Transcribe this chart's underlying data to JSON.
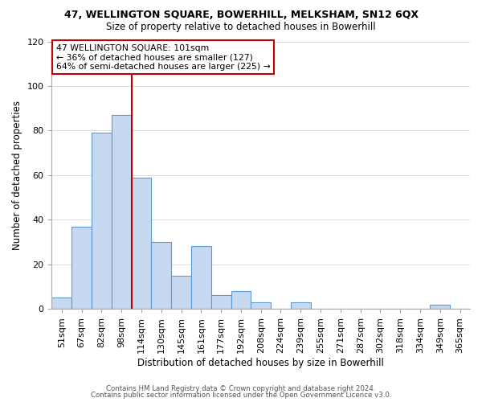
{
  "title": "47, WELLINGTON SQUARE, BOWERHILL, MELKSHAM, SN12 6QX",
  "subtitle": "Size of property relative to detached houses in Bowerhill",
  "xlabel": "Distribution of detached houses by size in Bowerhill",
  "ylabel": "Number of detached properties",
  "bar_labels": [
    "51sqm",
    "67sqm",
    "82sqm",
    "98sqm",
    "114sqm",
    "130sqm",
    "145sqm",
    "161sqm",
    "177sqm",
    "192sqm",
    "208sqm",
    "224sqm",
    "239sqm",
    "255sqm",
    "271sqm",
    "287sqm",
    "302sqm",
    "318sqm",
    "334sqm",
    "349sqm",
    "365sqm"
  ],
  "bar_values": [
    5,
    37,
    79,
    87,
    59,
    30,
    15,
    28,
    6,
    8,
    3,
    0,
    3,
    0,
    0,
    0,
    0,
    0,
    0,
    2,
    0
  ],
  "bar_color": "#c6d9f0",
  "bar_edge_color": "#5b9bd5",
  "highlight_line_color": "#c00000",
  "highlight_line_bar_index": 4,
  "ylim": [
    0,
    120
  ],
  "yticks": [
    0,
    20,
    40,
    60,
    80,
    100,
    120
  ],
  "annotation_box_text": "47 WELLINGTON SQUARE: 101sqm\n← 36% of detached houses are smaller (127)\n64% of semi-detached houses are larger (225) →",
  "footer_line1": "Contains HM Land Registry data © Crown copyright and database right 2024.",
  "footer_line2": "Contains public sector information licensed under the Open Government Licence v3.0.",
  "background_color": "#ffffff",
  "grid_color": "#d3dce6"
}
